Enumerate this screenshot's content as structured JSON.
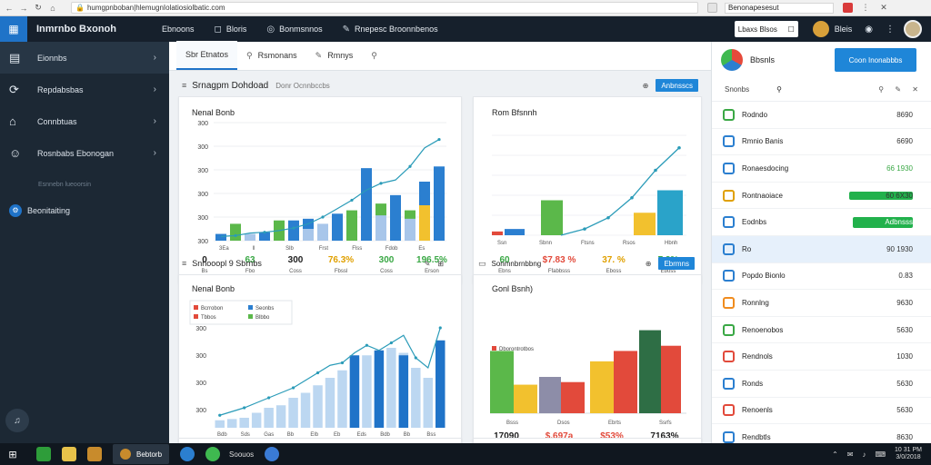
{
  "browser": {
    "address": "humgpnboban|hlemugnIolatiosiolbatic.com",
    "tab_search": "Benonapesesut",
    "nav_back": "←",
    "nav_forward": "→",
    "reload": "↻",
    "home": "⌂",
    "lock": "🔒",
    "menu_dots": "⋮",
    "close": "✕"
  },
  "topbar": {
    "title": "Inmrnbo Bxonoh",
    "nav": [
      {
        "label": "Ebnoons",
        "icon": ""
      },
      {
        "label": "Bloris",
        "icon": "◻"
      },
      {
        "label": "Bonmsnnos",
        "icon": "◎"
      },
      {
        "label": "Rnepesc Broonnbenos",
        "icon": "✎"
      }
    ],
    "search_placeholder": "Lbaxs Blsos",
    "search_icon": "☐",
    "username": "Bleis",
    "icons": [
      "◉",
      "⋮"
    ]
  },
  "sidebar": {
    "items": [
      {
        "label": "Eionnbs",
        "icon": "▤",
        "active": true
      },
      {
        "label": "Repdabsbas",
        "icon": "⟳",
        "active": false
      },
      {
        "label": "Connbtuas",
        "icon": "⌂",
        "active": false
      },
      {
        "label": "Rosnbabs Ebonogan",
        "icon": "☺",
        "active": false
      }
    ],
    "sub_label": "Esnnebn lueoorsin",
    "settings": {
      "label": "Beonitaiting",
      "icon": "⚙"
    },
    "footer_icon": "♫"
  },
  "main": {
    "tabs": [
      {
        "label": "Sbr Etnatos",
        "icon": "",
        "active": true
      },
      {
        "label": "Rsmonans",
        "icon": "⚲",
        "active": false
      },
      {
        "label": "Rmnys",
        "icon": "✎",
        "active": false
      },
      {
        "label": "",
        "icon": "⚲",
        "active": false
      }
    ],
    "panel1": {
      "title": "Srnagpm Dohdoad",
      "sub": "Donr Ocnnbccbs",
      "sort_icon": "≡",
      "btn_icon": "⊕",
      "button": "Anbnsscs"
    },
    "panel2": {
      "title": "Snnooopl 9 Sbrnbs",
      "sort_icon": "≡",
      "btn_icon": "✎",
      "btn_icon2": "⊞"
    },
    "panel3": {
      "title": "Sonmnbrnbbng",
      "btn_icon": "⊕",
      "button": "Ebrmns"
    }
  },
  "chart_data": [
    {
      "type": "bar",
      "title": "Nenal Bonb",
      "y_ticks": [
        "300",
        "300",
        "300",
        "300",
        "300",
        "300"
      ],
      "x_labels": [
        "3Ea",
        "ll",
        "Slb",
        "Frst",
        "Flss",
        "Fdob",
        "Es"
      ],
      "stats": [
        {
          "value": "0",
          "label": "Bs",
          "color": "#222222"
        },
        {
          "value": "63",
          "label": "Fbo",
          "color": "#3aa845"
        },
        {
          "value": "300",
          "label": "Coss",
          "color": "#222222"
        },
        {
          "value": "76.3%",
          "label": "Fbssl",
          "color": "#e0a000"
        },
        {
          "value": "300",
          "label": "Coss",
          "color": "#3aa845"
        },
        {
          "value": "196.5%",
          "label": "Erson",
          "color": "#3aa845"
        }
      ],
      "series": [
        {
          "color": "#2b7fd0",
          "values": [
            8,
            0,
            0,
            10,
            0,
            24,
            26,
            0,
            32,
            0,
            86,
            0,
            54,
            0,
            70,
            88
          ]
        },
        {
          "color": "#5bb84a",
          "values": [
            0,
            20,
            0,
            0,
            24,
            0,
            0,
            0,
            0,
            36,
            0,
            44,
            0,
            36,
            0,
            0
          ]
        },
        {
          "color": "#f2c12e",
          "values": [
            0,
            0,
            0,
            0,
            0,
            0,
            0,
            0,
            0,
            0,
            0,
            0,
            0,
            0,
            42,
            0
          ]
        },
        {
          "color": "#a8c6ea",
          "values": [
            0,
            0,
            8,
            0,
            0,
            0,
            14,
            20,
            0,
            0,
            0,
            30,
            0,
            26,
            0,
            0
          ]
        }
      ],
      "line": [
        5,
        6,
        9,
        10,
        12,
        15,
        20,
        28,
        38,
        48,
        60,
        68,
        72,
        88,
        110,
        120
      ]
    },
    {
      "type": "bar",
      "title": "Rom Bfsnnh",
      "x_labels": [
        "Ssn",
        "Sbnn",
        "Ftsns",
        "Rsos",
        "Hbnh"
      ],
      "stats": [
        {
          "value": "60",
          "label": "Ebns",
          "color": "#3aa845"
        },
        {
          "value": "$7.83 %",
          "label": "Ffabbsss",
          "color": "#e24a3b"
        },
        {
          "value": "37. %",
          "label": "Eboss",
          "color": "#e0a000"
        },
        {
          "value": "7.3%",
          "label": "Eboss",
          "color": "#3aa845"
        }
      ],
      "bars": [
        {
          "color": "#e24a3b",
          "value": 3
        },
        {
          "color": "#2b7fd0",
          "value": 5
        },
        {
          "color": "#5bb84a",
          "value": 28
        },
        {
          "color": "#f2c12e",
          "value": 18
        },
        {
          "color": "#2aa3c9",
          "value": 36
        }
      ],
      "line": [
        0,
        5,
        14,
        30,
        52,
        70
      ]
    },
    {
      "type": "bar",
      "title": "Nenal Bonb",
      "legend": [
        {
          "label": "Bcrrobon",
          "color": "#e24a3b"
        },
        {
          "label": "Seonbs",
          "color": "#2b7fd0"
        },
        {
          "label": "Tbbos",
          "color": "#e24a3b"
        },
        {
          "label": "Blbbo",
          "color": "#5bb84a"
        }
      ],
      "y_ticks": [
        "300",
        "300",
        "300",
        "300"
      ],
      "x_labels": [
        "Bdb",
        "Sds",
        "Gas",
        "Bb",
        "Elb",
        "Eb",
        "Eds",
        "Bdb",
        "Bb",
        "Bss"
      ],
      "sub_labels": [
        "Bsls",
        "Eols",
        "Sls",
        "Ess"
      ],
      "series": [
        {
          "color": "#bcd7f1",
          "values": [
            6,
            7,
            8,
            12,
            16,
            18,
            24,
            28,
            34,
            40,
            46,
            56,
            58,
            54,
            64,
            60,
            48,
            40,
            66
          ]
        },
        {
          "color": "#1f73c8",
          "values": [
            0,
            0,
            0,
            0,
            0,
            0,
            0,
            0,
            0,
            0,
            0,
            58,
            0,
            62,
            0,
            58,
            0,
            0,
            70
          ]
        }
      ],
      "line": [
        10,
        13,
        16,
        20,
        24,
        28,
        32,
        38,
        44,
        50,
        52,
        60,
        66,
        62,
        68,
        74,
        56,
        48,
        80
      ]
    },
    {
      "type": "bar",
      "title": "Gonl Bsnh)",
      "legend": [
        {
          "label": "Dborontrotbos",
          "color": "#e24a3b"
        }
      ],
      "x_labels": [
        "Bsss",
        "Dsos",
        "Ebrts",
        "Ssrfs"
      ],
      "stats": [
        {
          "value": "17090",
          "label": "Bsls",
          "color": "#222222"
        },
        {
          "value": "$.697a",
          "label": "Eols",
          "color": "#e24a3b"
        },
        {
          "value": "$53%",
          "label": "Sls",
          "color": "#e24a3b"
        },
        {
          "value": "7163%",
          "label": "Ess",
          "color": "#222222"
        }
      ],
      "bars": [
        {
          "color": "#5bb84a",
          "value": 48
        },
        {
          "color": "#f2c12e",
          "value": 22
        },
        {
          "color": "#8d8da8",
          "value": 28
        },
        {
          "color": "#e24a3b",
          "value": 24
        },
        {
          "color": "#f2c12e",
          "value": 40
        },
        {
          "color": "#e24a3b",
          "value": 48
        },
        {
          "color": "#2e6e45",
          "value": 64
        },
        {
          "color": "#e24a3b",
          "value": 52
        }
      ]
    }
  ],
  "rightpanel": {
    "title": "Bbsnls",
    "button": "Coon Inonabbbs",
    "tools_label": "Snonbs",
    "tools_icons": [
      "⚲",
      "⚲",
      "✎",
      "✕"
    ],
    "rows": [
      {
        "label": "Rodndo",
        "value": "8690",
        "icon_color": "#3aa845",
        "value_color": "#333333",
        "bar": 0,
        "selected": false
      },
      {
        "label": "Rmnio Banis",
        "value": "6690",
        "icon_color": "#2b7fd0",
        "value_color": "#333333",
        "bar": 0,
        "selected": false
      },
      {
        "label": "Ronaesdocing",
        "value": "66 1930",
        "icon_color": "#2b7fd0",
        "value_color": "#3aa845",
        "bar": 0,
        "selected": false
      },
      {
        "label": "Rontnaoiace",
        "value": "60 6X30",
        "icon_color": "#e0a000",
        "value_color": "#333333",
        "bar": 0.35,
        "selected": false
      },
      {
        "label": "Eodnbs",
        "value": "Adbnsss",
        "icon_color": "#2b7fd0",
        "value_color": "#ffffff",
        "bar": 0.3,
        "selected": false
      },
      {
        "label": "Ro",
        "value": "90 1930",
        "icon_color": "#2b7fd0",
        "value_color": "#333333",
        "bar": 0,
        "selected": true
      },
      {
        "label": "Popdo Bionlo",
        "value": "0.83",
        "icon_color": "#2b7fd0",
        "value_color": "#333333",
        "bar": 0,
        "selected": false
      },
      {
        "label": "Ronnlng",
        "value": "9630",
        "icon_color": "#f08c1e",
        "value_color": "#333333",
        "bar": 0,
        "selected": false
      },
      {
        "label": "Renoenobos",
        "value": "5630",
        "icon_color": "#3aa845",
        "value_color": "#333333",
        "bar": 0,
        "selected": false
      },
      {
        "label": "Rendnols",
        "value": "1030",
        "icon_color": "#e24a3b",
        "value_color": "#333333",
        "bar": 0,
        "selected": false
      },
      {
        "label": "Ronds",
        "value": "5630",
        "icon_color": "#2b7fd0",
        "value_color": "#333333",
        "bar": 0,
        "selected": false
      },
      {
        "label": "Renoenls",
        "value": "5630",
        "icon_color": "#e24a3b",
        "value_color": "#333333",
        "bar": 0,
        "selected": false
      },
      {
        "label": "Rendbtls",
        "value": "8630",
        "icon_color": "#2b7fd0",
        "value_color": "#333333",
        "bar": 0,
        "selected": false
      },
      {
        "label": "Rendblls",
        "value": "",
        "icon_color": "#2b7fd0",
        "value_color": "#333333",
        "bar": 0,
        "selected": false
      }
    ]
  },
  "taskbar": {
    "start_icon": "⊞",
    "app": "Bebtorb",
    "app2": "Soouos",
    "tray": [
      "⌃",
      "✉",
      "♪",
      "⌨"
    ],
    "clock": "10 31 PM\n3/0/2018",
    "icon_colors": [
      "#2e9d3a",
      "#e7c24a",
      "#c88b2c",
      "#2b7fd0",
      "#3fb950",
      "#3a7bd5"
    ]
  }
}
